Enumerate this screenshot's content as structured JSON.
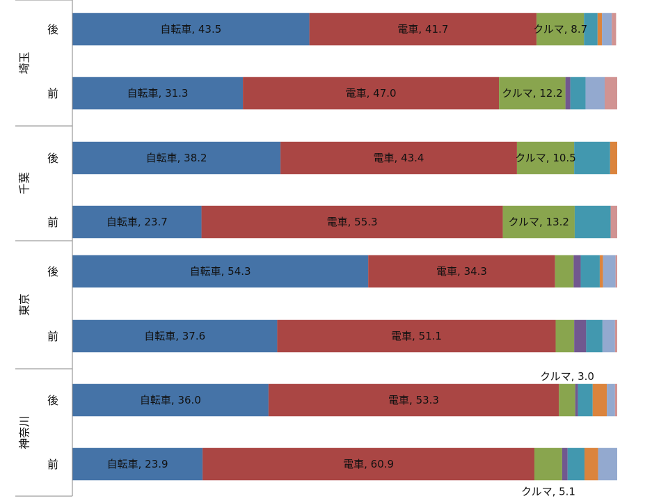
{
  "chart_data": {
    "type": "bar",
    "orientation": "horizontal",
    "stacked": true,
    "groups": [
      {
        "region": "埼玉",
        "rows": [
          {
            "label": "後",
            "values": [
              43.5,
              41.7,
              8.7,
              0.0,
              2.5,
              0.8,
              1.8,
              0.8
            ]
          },
          {
            "label": "前",
            "values": [
              31.3,
              47.0,
              12.2,
              0.9,
              2.8,
              0.0,
              3.5,
              2.3
            ]
          }
        ]
      },
      {
        "region": "千葉",
        "rows": [
          {
            "label": "後",
            "values": [
              38.2,
              43.4,
              10.5,
              0.0,
              6.6,
              1.3,
              0.0,
              0.0
            ]
          },
          {
            "label": "前",
            "values": [
              23.7,
              55.3,
              13.2,
              0.0,
              6.6,
              0.0,
              0.0,
              1.2
            ]
          }
        ]
      },
      {
        "region": "東京",
        "rows": [
          {
            "label": "後",
            "values": [
              54.3,
              34.3,
              3.4,
              1.3,
              3.5,
              0.6,
              2.3,
              0.3
            ]
          },
          {
            "label": "前",
            "values": [
              37.6,
              51.1,
              3.4,
              2.2,
              3.0,
              0.0,
              2.3,
              0.4
            ]
          }
        ]
      },
      {
        "region": "神奈川",
        "rows": [
          {
            "label": "後",
            "values": [
              36.0,
              53.3,
              3.0,
              0.5,
              2.7,
              2.6,
              1.5,
              0.4
            ]
          },
          {
            "label": "前",
            "values": [
              23.9,
              60.9,
              5.1,
              1.0,
              3.1,
              2.5,
              3.5,
              0.0
            ]
          }
        ]
      }
    ],
    "segment_names": [
      "自転車",
      "電車",
      "クルマ",
      "",
      "",
      "",
      "",
      ""
    ],
    "colors": [
      "#4573a7",
      "#aa4644",
      "#89a54e",
      "#71588f",
      "#4298af",
      "#db843d",
      "#93a9cf",
      "#d19392"
    ],
    "labels": [
      {
        "group": 0,
        "row": 0,
        "segment": 0,
        "text": "自転車, 43.5"
      },
      {
        "group": 0,
        "row": 0,
        "segment": 1,
        "text": "電車, 41.7"
      },
      {
        "group": 0,
        "row": 0,
        "segment": 2,
        "text": "クルマ, 8.7"
      },
      {
        "group": 0,
        "row": 1,
        "segment": 0,
        "text": "自転車, 31.3"
      },
      {
        "group": 0,
        "row": 1,
        "segment": 1,
        "text": "電車, 47.0"
      },
      {
        "group": 0,
        "row": 1,
        "segment": 2,
        "text": "クルマ, 12.2"
      },
      {
        "group": 1,
        "row": 0,
        "segment": 0,
        "text": "自転車, 38.2"
      },
      {
        "group": 1,
        "row": 0,
        "segment": 1,
        "text": "電車, 43.4"
      },
      {
        "group": 1,
        "row": 0,
        "segment": 2,
        "text": "クルマ, 10.5"
      },
      {
        "group": 1,
        "row": 1,
        "segment": 0,
        "text": "自転車, 23.7"
      },
      {
        "group": 1,
        "row": 1,
        "segment": 1,
        "text": "電車, 55.3"
      },
      {
        "group": 1,
        "row": 1,
        "segment": 2,
        "text": "クルマ, 13.2"
      },
      {
        "group": 2,
        "row": 0,
        "segment": 0,
        "text": "自転車, 54.3"
      },
      {
        "group": 2,
        "row": 0,
        "segment": 1,
        "text": "電車, 34.3"
      },
      {
        "group": 2,
        "row": 1,
        "segment": 0,
        "text": "自転車, 37.6"
      },
      {
        "group": 2,
        "row": 1,
        "segment": 1,
        "text": "電車, 51.1"
      },
      {
        "group": 3,
        "row": 0,
        "segment": 0,
        "text": "自転車, 36.0"
      },
      {
        "group": 3,
        "row": 0,
        "segment": 1,
        "text": "電車, 53.3"
      },
      {
        "group": 3,
        "row": 0,
        "segment": 2,
        "text": "クルマ, 3.0",
        "placement": "above"
      },
      {
        "group": 3,
        "row": 1,
        "segment": 0,
        "text": "自転車, 23.9"
      },
      {
        "group": 3,
        "row": 1,
        "segment": 1,
        "text": "電車, 60.9"
      },
      {
        "group": 3,
        "row": 1,
        "segment": 2,
        "text": "クルマ, 5.1",
        "placement": "below"
      }
    ],
    "xlim": [
      0,
      100
    ],
    "grid": false,
    "legend": "none"
  }
}
